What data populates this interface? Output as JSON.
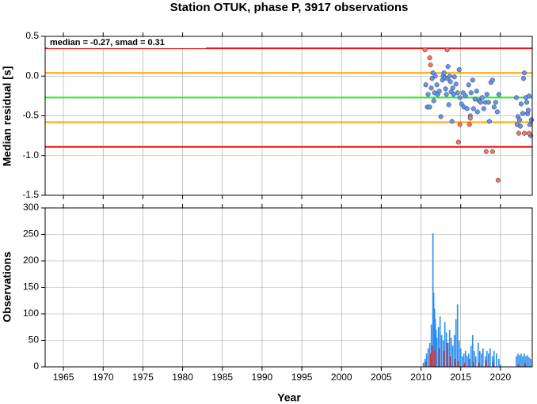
{
  "chart_data": [
    {
      "type": "scatter",
      "title": "Station OTUK, phase P, 3917 observations",
      "annotation": "median = -0.27, smad = 0.31",
      "ylabel": "Median residual [s]",
      "ylim": [
        -1.5,
        0.5
      ],
      "yticks": [
        0.5,
        {
          "value": 0,
          "label": "0.0"
        },
        -0.5,
        {
          "value": -1,
          "label": "-1.0"
        },
        -1.5
      ],
      "grid": true,
      "lines": [
        {
          "value": 0.35,
          "color": "#ee1111"
        },
        {
          "value": 0.04,
          "color": "#ffa500"
        },
        {
          "value": -0.27,
          "color": "#22ee22"
        },
        {
          "value": -0.58,
          "color": "#ffa500"
        },
        {
          "value": -0.89,
          "color": "#ee1111"
        }
      ],
      "series": [
        {
          "color": "#6495ed",
          "x": [
            2010.6,
            2010.8,
            2010.9,
            2011.1,
            2011.3,
            2011.4,
            2011.5,
            2011.6,
            2011.7,
            2011.8,
            2012.0,
            2012.1,
            2012.3,
            2012.5,
            2012.7,
            2012.8,
            2012.9,
            2013.0,
            2013.1,
            2013.2,
            2013.3,
            2013.4,
            2013.5,
            2013.6,
            2013.7,
            2013.8,
            2013.9,
            2014.0,
            2014.1,
            2014.2,
            2014.4,
            2014.6,
            2014.8,
            2014.9,
            2015.1,
            2015.3,
            2015.4,
            2015.6,
            2015.8,
            2016.0,
            2016.2,
            2016.3,
            2016.5,
            2016.6,
            2016.8,
            2017.0,
            2017.1,
            2017.3,
            2017.5,
            2017.7,
            2017.9,
            2018.1,
            2018.3,
            2018.5,
            2018.6,
            2018.8,
            2019.0,
            2019.2,
            2019.4,
            2019.6,
            2019.8,
            2022.0,
            2022.1,
            2022.2,
            2022.4,
            2022.5,
            2022.6,
            2022.8,
            2022.9,
            2023.0,
            2023.2,
            2023.3,
            2023.4,
            2023.5,
            2023.6,
            2023.7,
            2023.8,
            2023.9
          ],
          "values": [
            -0.11,
            -0.39,
            -0.23,
            -0.39,
            -0.15,
            -0.03,
            0.04,
            -0.31,
            -0.21,
            0.0,
            -0.11,
            -0.23,
            -0.19,
            -0.51,
            -0.05,
            0.0,
            0.04,
            -0.02,
            -0.16,
            -0.23,
            -0.03,
            0.12,
            -0.36,
            0.0,
            -0.07,
            -0.2,
            -0.57,
            -0.15,
            -0.23,
            -0.01,
            -0.1,
            -0.21,
            0.08,
            -0.27,
            -0.35,
            -0.21,
            -0.39,
            -0.25,
            -0.41,
            -0.11,
            -0.5,
            -0.21,
            -0.05,
            -0.41,
            -0.29,
            -0.19,
            -0.45,
            -0.31,
            -0.33,
            -0.27,
            -0.41,
            -0.33,
            -0.23,
            -0.33,
            -0.57,
            -0.08,
            -0.05,
            -0.39,
            -0.33,
            -0.45,
            -0.23,
            -0.27,
            -0.61,
            -0.51,
            -0.55,
            -0.63,
            -0.35,
            -0.47,
            -0.03,
            0.04,
            -0.27,
            -0.33,
            -0.47,
            -0.43,
            -0.25,
            -0.61,
            -0.75,
            -0.55
          ]
        },
        {
          "color": "#fa7060",
          "x": [
            2010.5,
            2011.1,
            2011.2,
            2013.3,
            2014.7,
            2014.9,
            2016.1,
            2016.2,
            2018.2,
            2019.0,
            2019.7,
            2022.3,
            2023.0,
            2023.6
          ],
          "values": [
            0.33,
            0.23,
            0.14,
            0.33,
            -0.83,
            -0.61,
            -0.61,
            -0.53,
            -0.95,
            -0.95,
            -1.31,
            -0.72,
            -0.72,
            -0.72
          ]
        }
      ]
    },
    {
      "type": "bar",
      "xlabel": "Year",
      "ylabel": "Observations",
      "xlim": [
        1962.7,
        2024
      ],
      "xticks": [
        1965,
        1970,
        1975,
        1980,
        1985,
        1990,
        1995,
        2000,
        2005,
        2010,
        2015,
        2020
      ],
      "ylim": [
        0,
        300
      ],
      "yticks": [
        0,
        50,
        100,
        150,
        200,
        250,
        300
      ],
      "grid": true,
      "series": [
        {
          "color": "#2a8cf0",
          "x": [
            2010.3,
            2010.5,
            2010.7,
            2010.9,
            2011.1,
            2011.3,
            2011.5,
            2011.6,
            2011.7,
            2011.8,
            2011.9,
            2012.0,
            2012.2,
            2012.4,
            2012.6,
            2012.8,
            2013.0,
            2013.2,
            2013.4,
            2013.6,
            2013.8,
            2014.0,
            2014.2,
            2014.4,
            2014.6,
            2014.8,
            2015.0,
            2015.2,
            2015.4,
            2015.6,
            2015.8,
            2016.0,
            2016.3,
            2016.5,
            2016.7,
            2016.9,
            2017.2,
            2017.4,
            2017.6,
            2017.8,
            2018.1,
            2018.3,
            2018.5,
            2018.7,
            2019.0,
            2019.2,
            2019.5,
            2019.8,
            2020.0,
            2022.0,
            2022.2,
            2022.4,
            2022.6,
            2022.8,
            2023.0,
            2023.2,
            2023.4,
            2023.6,
            2023.8
          ],
          "values": [
            8,
            15,
            25,
            35,
            45,
            80,
            252,
            140,
            110,
            90,
            70,
            55,
            75,
            95,
            60,
            50,
            85,
            65,
            45,
            70,
            55,
            40,
            60,
            90,
            118,
            50,
            35,
            20,
            25,
            30,
            20,
            25,
            40,
            60,
            30,
            20,
            45,
            30,
            25,
            35,
            20,
            30,
            25,
            35,
            20,
            30,
            25,
            15,
            5,
            20,
            25,
            22,
            25,
            20,
            25,
            20,
            22,
            18,
            15
          ]
        },
        {
          "color": "#e0302b",
          "x": [
            2010.6,
            2011.2,
            2011.4,
            2011.7,
            2012.3,
            2012.9,
            2013.3,
            2013.7,
            2014.3,
            2014.7,
            2015.5,
            2016.1,
            2016.6,
            2017.3,
            2018.2,
            2019.1,
            2022.3,
            2023.1
          ],
          "values": [
            10,
            25,
            40,
            30,
            35,
            30,
            45,
            20,
            15,
            10,
            8,
            15,
            10,
            8,
            12,
            10,
            5,
            8
          ]
        }
      ]
    }
  ]
}
